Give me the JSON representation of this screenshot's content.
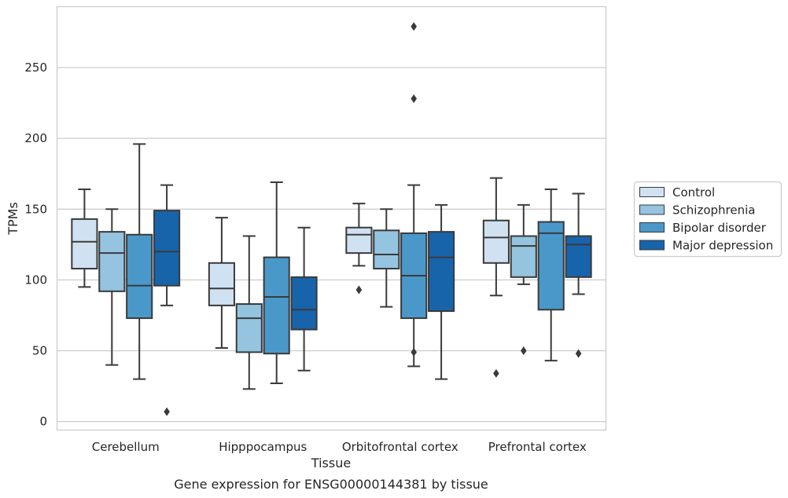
{
  "chart_data": {
    "type": "box",
    "caption": "Gene expression for ENSG00000144381 by tissue",
    "xlabel": "Tissue",
    "ylabel": "TPMs",
    "ylim": [
      -6,
      293
    ],
    "yticks": [
      0,
      50,
      100,
      150,
      200,
      250
    ],
    "grid": true,
    "legend_position": "right",
    "categories": [
      "Cerebellum",
      "Hipppocampus",
      "Orbitofrontal cortex",
      "Prefrontal cortex"
    ],
    "series": [
      {
        "name": "Control",
        "color": "#d0e1f2",
        "boxes": [
          {
            "whisker_low": 95,
            "q1": 108,
            "median": 127,
            "q3": 143,
            "whisker_high": 164,
            "outliers": []
          },
          {
            "whisker_low": 52,
            "q1": 82,
            "median": 94,
            "q3": 112,
            "whisker_high": 144,
            "outliers": []
          },
          {
            "whisker_low": 110,
            "q1": 119,
            "median": 132,
            "q3": 137,
            "whisker_high": 154,
            "outliers": [
              93
            ]
          },
          {
            "whisker_low": 89,
            "q1": 112,
            "median": 130,
            "q3": 142,
            "whisker_high": 172,
            "outliers": [
              34
            ]
          }
        ]
      },
      {
        "name": "Schizophrenia",
        "color": "#94c4df",
        "boxes": [
          {
            "whisker_low": 40,
            "q1": 92,
            "median": 119,
            "q3": 134,
            "whisker_high": 150,
            "outliers": []
          },
          {
            "whisker_low": 23,
            "q1": 49,
            "median": 73,
            "q3": 83,
            "whisker_high": 131,
            "outliers": []
          },
          {
            "whisker_low": 81,
            "q1": 108,
            "median": 118,
            "q3": 135,
            "whisker_high": 150,
            "outliers": []
          },
          {
            "whisker_low": 97,
            "q1": 102,
            "median": 124,
            "q3": 131,
            "whisker_high": 153,
            "outliers": [
              50
            ]
          }
        ]
      },
      {
        "name": "Bipolar disorder",
        "color": "#4a98c9",
        "boxes": [
          {
            "whisker_low": 30,
            "q1": 73,
            "median": 96,
            "q3": 132,
            "whisker_high": 196,
            "outliers": []
          },
          {
            "whisker_low": 27,
            "q1": 48,
            "median": 88,
            "q3": 116,
            "whisker_high": 169,
            "outliers": []
          },
          {
            "whisker_low": 39,
            "q1": 73,
            "median": 103,
            "q3": 133,
            "whisker_high": 167,
            "outliers": [
              49,
              228,
              279
            ]
          },
          {
            "whisker_low": 43,
            "q1": 79,
            "median": 133,
            "q3": 141,
            "whisker_high": 164,
            "outliers": []
          }
        ]
      },
      {
        "name": "Major depression",
        "color": "#1764ab",
        "boxes": [
          {
            "whisker_low": 82,
            "q1": 96,
            "median": 120,
            "q3": 149,
            "whisker_high": 167,
            "outliers": [
              7
            ]
          },
          {
            "whisker_low": 36,
            "q1": 65,
            "median": 79,
            "q3": 102,
            "whisker_high": 137,
            "outliers": []
          },
          {
            "whisker_low": 30,
            "q1": 78,
            "median": 116,
            "q3": 134,
            "whisker_high": 153,
            "outliers": []
          },
          {
            "whisker_low": 90,
            "q1": 102,
            "median": 125,
            "q3": 131,
            "whisker_high": 161,
            "outliers": [
              48
            ]
          }
        ]
      }
    ]
  }
}
